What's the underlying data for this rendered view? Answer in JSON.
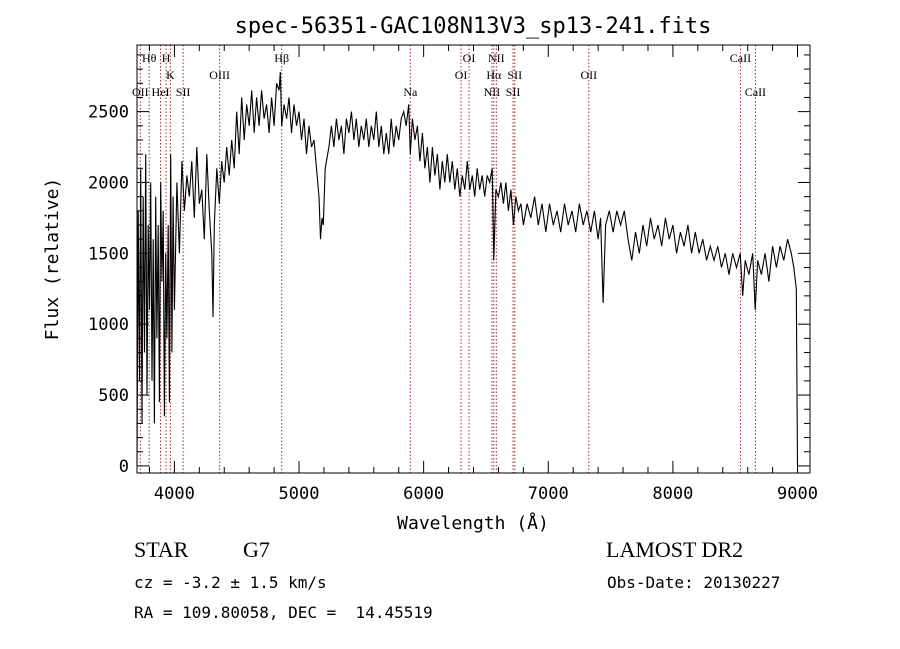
{
  "chart_data": {
    "type": "line",
    "title": "spec-56351-GAC108N13V3_sp13-241.fits",
    "xlabel": "Wavelength (Å)",
    "ylabel": "Flux (relative)",
    "xlim": [
      3700,
      9100
    ],
    "ylim": [
      -50,
      2970
    ],
    "xticks": [
      4000,
      5000,
      6000,
      7000,
      8000,
      9000
    ],
    "yticks": [
      0,
      500,
      1000,
      1500,
      2000,
      2500
    ],
    "grid": false,
    "series": [
      {
        "points": [
          [
            3700,
            0
          ],
          [
            3710,
            1800
          ],
          [
            3720,
            600
          ],
          [
            3730,
            2100
          ],
          [
            3740,
            300
          ],
          [
            3750,
            1900
          ],
          [
            3760,
            800
          ],
          [
            3770,
            2200
          ],
          [
            3780,
            500
          ],
          [
            3790,
            1700
          ],
          [
            3800,
            1100
          ],
          [
            3810,
            2000
          ],
          [
            3820,
            600
          ],
          [
            3830,
            1600
          ],
          [
            3840,
            300
          ],
          [
            3850,
            1900
          ],
          [
            3860,
            900
          ],
          [
            3870,
            1700
          ],
          [
            3880,
            450
          ],
          [
            3890,
            2000
          ],
          [
            3900,
            1300
          ],
          [
            3910,
            1800
          ],
          [
            3920,
            350
          ],
          [
            3930,
            1500
          ],
          [
            3940,
            900
          ],
          [
            3950,
            1700
          ],
          [
            3960,
            450
          ],
          [
            3970,
            2200
          ],
          [
            3980,
            800
          ],
          [
            3990,
            1900
          ],
          [
            4000,
            1100
          ],
          [
            4020,
            2000
          ],
          [
            4040,
            1500
          ],
          [
            4060,
            2150
          ],
          [
            4080,
            1800
          ],
          [
            4100,
            2050
          ],
          [
            4120,
            1900
          ],
          [
            4140,
            2150
          ],
          [
            4160,
            1750
          ],
          [
            4180,
            2250
          ],
          [
            4200,
            1850
          ],
          [
            4220,
            1950
          ],
          [
            4240,
            1600
          ],
          [
            4260,
            2200
          ],
          [
            4280,
            1800
          ],
          [
            4300,
            1500
          ],
          [
            4310,
            1050
          ],
          [
            4320,
            1700
          ],
          [
            4340,
            2100
          ],
          [
            4360,
            1850
          ],
          [
            4380,
            2150
          ],
          [
            4400,
            2000
          ],
          [
            4420,
            2250
          ],
          [
            4440,
            2050
          ],
          [
            4460,
            2300
          ],
          [
            4480,
            2100
          ],
          [
            4500,
            2500
          ],
          [
            4520,
            2200
          ],
          [
            4540,
            2600
          ],
          [
            4560,
            2300
          ],
          [
            4580,
            2550
          ],
          [
            4600,
            2400
          ],
          [
            4620,
            2650
          ],
          [
            4640,
            2350
          ],
          [
            4660,
            2600
          ],
          [
            4680,
            2400
          ],
          [
            4700,
            2650
          ],
          [
            4720,
            2450
          ],
          [
            4740,
            2550
          ],
          [
            4760,
            2350
          ],
          [
            4780,
            2600
          ],
          [
            4800,
            2400
          ],
          [
            4820,
            2700
          ],
          [
            4840,
            2650
          ],
          [
            4850,
            2780
          ],
          [
            4861,
            2400
          ],
          [
            4880,
            2550
          ],
          [
            4900,
            2450
          ],
          [
            4920,
            2600
          ],
          [
            4940,
            2350
          ],
          [
            4960,
            2550
          ],
          [
            4980,
            2400
          ],
          [
            5000,
            2500
          ],
          [
            5020,
            2300
          ],
          [
            5040,
            2450
          ],
          [
            5060,
            2200
          ],
          [
            5080,
            2400
          ],
          [
            5100,
            2250
          ],
          [
            5120,
            2300
          ],
          [
            5140,
            2100
          ],
          [
            5160,
            1900
          ],
          [
            5172,
            1600
          ],
          [
            5184,
            1750
          ],
          [
            5195,
            1700
          ],
          [
            5210,
            2100
          ],
          [
            5240,
            2250
          ],
          [
            5260,
            2400
          ],
          [
            5280,
            2250
          ],
          [
            5300,
            2450
          ],
          [
            5320,
            2300
          ],
          [
            5340,
            2400
          ],
          [
            5360,
            2200
          ],
          [
            5380,
            2450
          ],
          [
            5400,
            2350
          ],
          [
            5420,
            2500
          ],
          [
            5440,
            2300
          ],
          [
            5460,
            2450
          ],
          [
            5480,
            2250
          ],
          [
            5500,
            2400
          ],
          [
            5520,
            2300
          ],
          [
            5540,
            2450
          ],
          [
            5560,
            2250
          ],
          [
            5580,
            2400
          ],
          [
            5600,
            2300
          ],
          [
            5620,
            2500
          ],
          [
            5640,
            2250
          ],
          [
            5660,
            2400
          ],
          [
            5680,
            2200
          ],
          [
            5700,
            2350
          ],
          [
            5720,
            2200
          ],
          [
            5740,
            2450
          ],
          [
            5760,
            2250
          ],
          [
            5780,
            2400
          ],
          [
            5800,
            2300
          ],
          [
            5820,
            2450
          ],
          [
            5840,
            2500
          ],
          [
            5860,
            2400
          ],
          [
            5880,
            2550
          ],
          [
            5893,
            2200
          ],
          [
            5910,
            2450
          ],
          [
            5930,
            2300
          ],
          [
            5950,
            2400
          ],
          [
            5970,
            2150
          ],
          [
            5990,
            2350
          ],
          [
            6010,
            2100
          ],
          [
            6030,
            2250
          ],
          [
            6050,
            2000
          ],
          [
            6070,
            2250
          ],
          [
            6090,
            2050
          ],
          [
            6110,
            2200
          ],
          [
            6130,
            1950
          ],
          [
            6150,
            2150
          ],
          [
            6170,
            2000
          ],
          [
            6190,
            2200
          ],
          [
            6210,
            2000
          ],
          [
            6230,
            2150
          ],
          [
            6250,
            1950
          ],
          [
            6270,
            2100
          ],
          [
            6290,
            1900
          ],
          [
            6310,
            2050
          ],
          [
            6330,
            1950
          ],
          [
            6350,
            2150
          ],
          [
            6370,
            1950
          ],
          [
            6390,
            2050
          ],
          [
            6410,
            1900
          ],
          [
            6430,
            2100
          ],
          [
            6450,
            1950
          ],
          [
            6470,
            2050
          ],
          [
            6490,
            1900
          ],
          [
            6510,
            2050
          ],
          [
            6530,
            2000
          ],
          [
            6550,
            2100
          ],
          [
            6563,
            1450
          ],
          [
            6580,
            1950
          ],
          [
            6600,
            1900
          ],
          [
            6620,
            2000
          ],
          [
            6640,
            1850
          ],
          [
            6660,
            2000
          ],
          [
            6680,
            1800
          ],
          [
            6700,
            1950
          ],
          [
            6720,
            1700
          ],
          [
            6740,
            1900
          ],
          [
            6760,
            1800
          ],
          [
            6780,
            1850
          ],
          [
            6800,
            1700
          ],
          [
            6830,
            1850
          ],
          [
            6860,
            1750
          ],
          [
            6890,
            1900
          ],
          [
            6920,
            1700
          ],
          [
            6950,
            1850
          ],
          [
            6980,
            1650
          ],
          [
            7010,
            1850
          ],
          [
            7040,
            1700
          ],
          [
            7070,
            1800
          ],
          [
            7100,
            1650
          ],
          [
            7130,
            1850
          ],
          [
            7160,
            1700
          ],
          [
            7190,
            1800
          ],
          [
            7220,
            1650
          ],
          [
            7250,
            1850
          ],
          [
            7280,
            1700
          ],
          [
            7310,
            1800
          ],
          [
            7340,
            1650
          ],
          [
            7370,
            1800
          ],
          [
            7400,
            1600
          ],
          [
            7420,
            1750
          ],
          [
            7440,
            1150
          ],
          [
            7460,
            1700
          ],
          [
            7490,
            1800
          ],
          [
            7520,
            1650
          ],
          [
            7550,
            1800
          ],
          [
            7580,
            1700
          ],
          [
            7610,
            1800
          ],
          [
            7640,
            1600
          ],
          [
            7670,
            1450
          ],
          [
            7700,
            1650
          ],
          [
            7730,
            1500
          ],
          [
            7760,
            1700
          ],
          [
            7790,
            1550
          ],
          [
            7820,
            1750
          ],
          [
            7850,
            1600
          ],
          [
            7880,
            1700
          ],
          [
            7910,
            1550
          ],
          [
            7940,
            1750
          ],
          [
            7970,
            1600
          ],
          [
            8000,
            1700
          ],
          [
            8030,
            1500
          ],
          [
            8060,
            1650
          ],
          [
            8090,
            1550
          ],
          [
            8120,
            1700
          ],
          [
            8150,
            1500
          ],
          [
            8180,
            1650
          ],
          [
            8210,
            1500
          ],
          [
            8240,
            1600
          ],
          [
            8270,
            1450
          ],
          [
            8300,
            1550
          ],
          [
            8330,
            1450
          ],
          [
            8360,
            1550
          ],
          [
            8390,
            1400
          ],
          [
            8420,
            1500
          ],
          [
            8450,
            1350
          ],
          [
            8480,
            1500
          ],
          [
            8510,
            1400
          ],
          [
            8540,
            1500
          ],
          [
            8560,
            1200
          ],
          [
            8580,
            1450
          ],
          [
            8610,
            1350
          ],
          [
            8640,
            1500
          ],
          [
            8660,
            1100
          ],
          [
            8680,
            1450
          ],
          [
            8710,
            1350
          ],
          [
            8740,
            1500
          ],
          [
            8770,
            1300
          ],
          [
            8800,
            1550
          ],
          [
            8830,
            1400
          ],
          [
            8860,
            1550
          ],
          [
            8890,
            1450
          ],
          [
            8920,
            1600
          ],
          [
            8950,
            1500
          ],
          [
            8970,
            1400
          ],
          [
            8990,
            1250
          ],
          [
            9000,
            0
          ]
        ]
      }
    ],
    "line_markers": [
      {
        "label": "Hθ",
        "x": 3798,
        "row": 1
      },
      {
        "label": "H",
        "x": 3933,
        "row": 1
      },
      {
        "label": "K",
        "x": 3968,
        "row": 2
      },
      {
        "label": "OII",
        "x": 3727,
        "row": 3
      },
      {
        "label": "HeI",
        "x": 3889,
        "row": 3
      },
      {
        "label": "SII",
        "x": 4070,
        "row": 3
      },
      {
        "label": "OIII",
        "x": 4363,
        "row": 2
      },
      {
        "label": "Hβ",
        "x": 4861,
        "row": 1
      },
      {
        "label": "Na",
        "x": 5893,
        "row": 3
      },
      {
        "label": "OI",
        "x": 6364,
        "row": 1
      },
      {
        "label": "OI",
        "x": 6300,
        "row": 2
      },
      {
        "label": "NII",
        "x": 6583,
        "row": 1
      },
      {
        "label": "Hα",
        "x": 6563,
        "row": 2
      },
      {
        "label": "SII",
        "x": 6731,
        "row": 2
      },
      {
        "label": "NII",
        "x": 6548,
        "row": 3
      },
      {
        "label": "SII",
        "x": 6717,
        "row": 3
      },
      {
        "label": "OII",
        "x": 7325,
        "row": 2
      },
      {
        "label": "CaII",
        "x": 8542,
        "row": 1
      },
      {
        "label": "CaII",
        "x": 8662,
        "row": 3
      }
    ]
  },
  "info": {
    "object_class": "STAR",
    "subclass": "G7",
    "survey": "LAMOST DR2",
    "redshift": "cz = -3.2 ± 1.5 km/s",
    "obs_date": "Obs-Date: 20130227",
    "coords": "RA = 109.80058, DEC =  14.45519"
  },
  "colors": {
    "spectrum": "#000000",
    "marker_line": "#a52a2a",
    "axis": "#000000"
  }
}
